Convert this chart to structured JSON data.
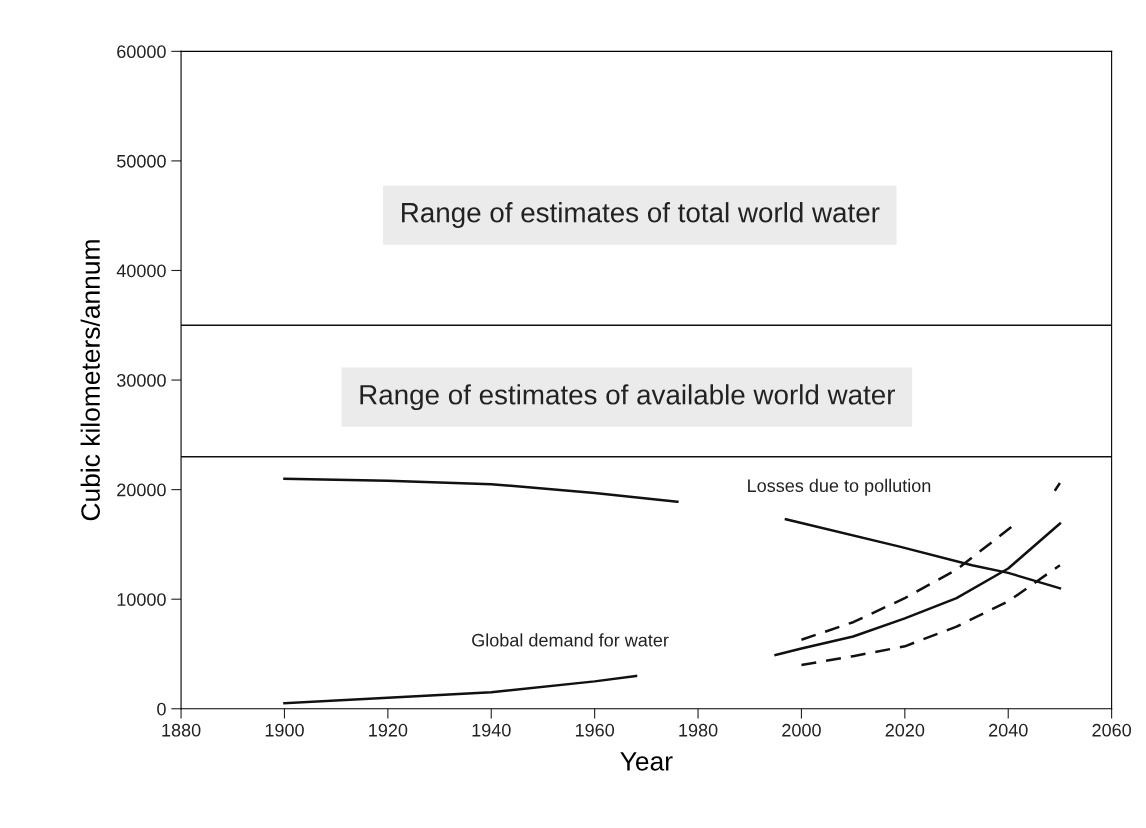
{
  "chart_data": {
    "type": "line",
    "xlabel": "Year",
    "ylabel": "Cubic kilometers/annum",
    "xlim": [
      1880,
      2060
    ],
    "xticks": [
      1880,
      1900,
      1920,
      1940,
      1960,
      1980,
      2000,
      2020,
      2040,
      2060
    ],
    "ylim": [
      0,
      60000
    ],
    "yticks": [
      0,
      10000,
      20000,
      30000,
      40000,
      50000,
      60000
    ],
    "grid": false,
    "marker": "none",
    "series": [
      {
        "color": "#111111",
        "line_style": "solid",
        "x": [
          1900,
          1920,
          1940,
          1960,
          1976,
          null,
          1997,
          2019,
          2033,
          2040,
          2050
        ],
        "values": [
          21000,
          20800,
          20500,
          19700,
          18900,
          null,
          17300,
          14800,
          13100,
          12400,
          11000
        ]
      },
      {
        "color": "#111111",
        "line_style": "solid",
        "x": [
          1900,
          1920,
          1940,
          1960,
          1968,
          null,
          1995,
          2000,
          2010,
          2020,
          2030,
          2040,
          2050
        ],
        "values": [
          500,
          1000,
          1500,
          2500,
          3000,
          null,
          4900,
          5500,
          6600,
          8250,
          10100,
          12800,
          16900
        ]
      },
      {
        "color": "#111111",
        "line_style": "dashed",
        "x": [
          2000,
          2010,
          2020,
          2030,
          2042,
          null,
          2049,
          2050
        ],
        "values": [
          6300,
          7900,
          10100,
          12700,
          17100,
          null,
          19900,
          20600
        ]
      },
      {
        "color": "#111111",
        "line_style": "dashed",
        "x": [
          2000,
          2010,
          2020,
          2030,
          2040,
          2050
        ],
        "values": [
          4000,
          4800,
          5700,
          7500,
          9800,
          13100
        ]
      }
    ],
    "ref_lines": [
      {
        "axis": "y",
        "value": 35000,
        "color": "#111111"
      },
      {
        "axis": "y",
        "value": 23000,
        "color": "#111111"
      }
    ],
    "annotations": [
      "Range of estimates of total world water",
      "Range of estimates of available world water",
      "Losses due to pollution",
      "Global demand for water"
    ]
  }
}
